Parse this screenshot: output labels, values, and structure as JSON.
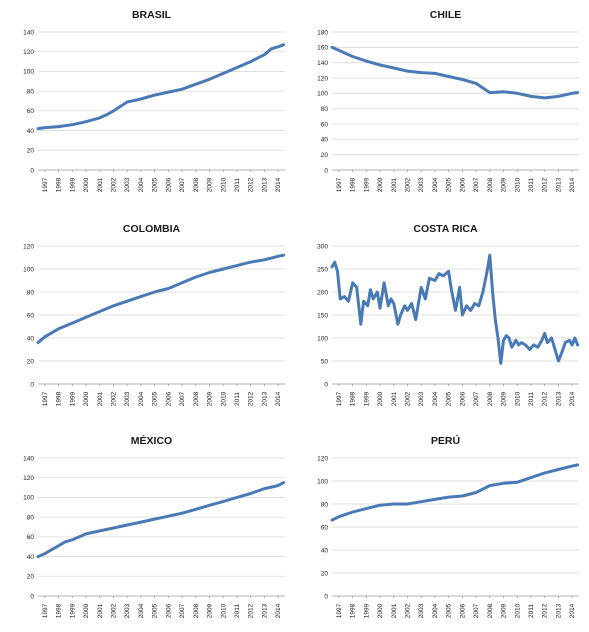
{
  "style": {
    "line_color": "#4a7ab5",
    "grid_color": "#d9d9d9",
    "axis_color": "#9a9a9a",
    "background": "#ffffff"
  },
  "chart_data": [
    {
      "type": "line",
      "title": "BRASIL",
      "grid": true,
      "ylim": [
        0,
        140
      ],
      "yticks": [
        0,
        20,
        40,
        60,
        80,
        100,
        120,
        140
      ],
      "xlim": [
        1996.5,
        2014.5
      ],
      "xticks": [
        "1997",
        "1998",
        "1999",
        "2000",
        "2001",
        "2002",
        "2003",
        "2004",
        "2005",
        "2006",
        "2007",
        "2008",
        "2009",
        "2010",
        "2011",
        "2012",
        "2013",
        "2014"
      ],
      "series": [
        {
          "x": [
            1996.5,
            1997,
            1998,
            1999,
            2000,
            2001,
            2001.5,
            2002,
            2003,
            2004,
            2005,
            2006,
            2007,
            2008,
            2009,
            2010,
            2011,
            2012,
            2013,
            2013.5,
            2014,
            2014.4
          ],
          "y": [
            42,
            43,
            44,
            46,
            49,
            53,
            56,
            60,
            69,
            72,
            76,
            79,
            82,
            87,
            92,
            98,
            104,
            110,
            117,
            123,
            125,
            127
          ]
        }
      ]
    },
    {
      "type": "line",
      "title": "CHILE",
      "grid": true,
      "ylim": [
        0,
        180
      ],
      "yticks": [
        0,
        20,
        40,
        60,
        80,
        100,
        120,
        140,
        160,
        180
      ],
      "xlim": [
        1996.5,
        2014.5
      ],
      "xticks": [
        "1997",
        "1998",
        "1999",
        "2000",
        "2001",
        "2002",
        "2003",
        "2004",
        "2005",
        "2006",
        "2007",
        "2008",
        "2009",
        "2010",
        "2011",
        "2012",
        "2013",
        "2014"
      ],
      "series": [
        {
          "x": [
            1996.5,
            1997,
            1998,
            1999,
            2000,
            2001,
            2002,
            2003,
            2004,
            2005,
            2006,
            2007,
            2007.5,
            2008,
            2009,
            2010,
            2011,
            2012,
            2013,
            2014,
            2014.4
          ],
          "y": [
            160,
            156,
            148,
            142,
            137,
            133,
            129,
            127,
            126,
            122,
            118,
            113,
            107,
            101,
            102,
            100,
            96,
            94,
            96,
            100,
            101
          ]
        }
      ]
    },
    {
      "type": "line",
      "title": "COLOMBIA",
      "grid": true,
      "ylim": [
        0,
        120
      ],
      "yticks": [
        0,
        20,
        40,
        60,
        80,
        100,
        120
      ],
      "xlim": [
        1996.5,
        2014.5
      ],
      "xticks": [
        "1997",
        "1998",
        "1999",
        "2000",
        "2001",
        "2002",
        "2003",
        "2004",
        "2005",
        "2006",
        "2007",
        "2008",
        "2009",
        "2010",
        "2011",
        "2012",
        "2013",
        "2014"
      ],
      "series": [
        {
          "x": [
            1996.5,
            1997,
            1998,
            1999,
            2000,
            2001,
            2002,
            2003,
            2004,
            2005,
            2006,
            2007,
            2008,
            2009,
            2010,
            2011,
            2012,
            2013,
            2014,
            2014.4
          ],
          "y": [
            36,
            41,
            48,
            53,
            58,
            63,
            68,
            72,
            76,
            80,
            83,
            88,
            93,
            97,
            100,
            103,
            106,
            108,
            111,
            112
          ]
        }
      ]
    },
    {
      "type": "line",
      "title": "COSTA RICA",
      "grid": true,
      "ylim": [
        0,
        300
      ],
      "yticks": [
        0,
        50,
        100,
        150,
        200,
        250,
        300
      ],
      "xlim": [
        1996.5,
        2014.5
      ],
      "xticks": [
        "1997",
        "1998",
        "1999",
        "2000",
        "2001",
        "2002",
        "2003",
        "2004",
        "2005",
        "2006",
        "2007",
        "2008",
        "2009",
        "2010",
        "2011",
        "2012",
        "2013",
        "2014"
      ],
      "series": [
        {
          "x": [
            1996.5,
            1996.7,
            1996.9,
            1997.1,
            1997.4,
            1997.7,
            1998,
            1998.3,
            1998.6,
            1998.8,
            1999.1,
            1999.3,
            1999.5,
            1999.8,
            2000,
            2000.3,
            2000.6,
            2000.8,
            2001,
            2001.3,
            2001.5,
            2001.8,
            2002,
            2002.3,
            2002.6,
            2003,
            2003.3,
            2003.6,
            2004,
            2004.3,
            2004.6,
            2005,
            2005.2,
            2005.5,
            2005.8,
            2006,
            2006.3,
            2006.6,
            2006.9,
            2007.2,
            2007.5,
            2007.8,
            2008,
            2008.2,
            2008.4,
            2008.6,
            2008.8,
            2009,
            2009.2,
            2009.4,
            2009.6,
            2009.9,
            2010.1,
            2010.3,
            2010.6,
            2010.9,
            2011.2,
            2011.5,
            2011.8,
            2012,
            2012.2,
            2012.5,
            2012.8,
            2013,
            2013.2,
            2013.5,
            2013.8,
            2014,
            2014.2,
            2014.4
          ],
          "y": [
            255,
            265,
            245,
            185,
            190,
            180,
            220,
            210,
            130,
            180,
            170,
            205,
            185,
            200,
            165,
            220,
            170,
            185,
            175,
            130,
            150,
            170,
            160,
            175,
            140,
            210,
            185,
            230,
            225,
            240,
            235,
            245,
            205,
            160,
            210,
            150,
            170,
            160,
            175,
            170,
            200,
            245,
            280,
            200,
            140,
            100,
            45,
            95,
            105,
            100,
            80,
            95,
            85,
            90,
            85,
            75,
            85,
            80,
            95,
            110,
            90,
            100,
            70,
            50,
            65,
            90,
            95,
            85,
            100,
            85
          ]
        }
      ]
    },
    {
      "type": "line",
      "title": "MÉXICO",
      "grid": true,
      "ylim": [
        0,
        140
      ],
      "yticks": [
        0,
        20,
        40,
        60,
        80,
        100,
        120,
        140
      ],
      "xlim": [
        1996.5,
        2014.5
      ],
      "xticks": [
        "1997",
        "1998",
        "1999",
        "2000",
        "2001",
        "2002",
        "2003",
        "2004",
        "2005",
        "2006",
        "2007",
        "2008",
        "2009",
        "2010",
        "2011",
        "2012",
        "2013",
        "2014"
      ],
      "series": [
        {
          "x": [
            1996.5,
            1997,
            1998,
            1998.5,
            1999,
            2000,
            2001,
            2002,
            2003,
            2004,
            2005,
            2006,
            2007,
            2008,
            2009,
            2010,
            2011,
            2012,
            2013,
            2014,
            2014.4
          ],
          "y": [
            40,
            43,
            51,
            55,
            57,
            63,
            66,
            69,
            72,
            75,
            78,
            81,
            84,
            88,
            92,
            96,
            100,
            104,
            109,
            112,
            115
          ]
        }
      ]
    },
    {
      "type": "line",
      "title": "PERÚ",
      "grid": true,
      "ylim": [
        0,
        120
      ],
      "yticks": [
        0,
        20,
        40,
        60,
        80,
        100,
        120
      ],
      "xlim": [
        1996.5,
        2014.5
      ],
      "xticks": [
        "1997",
        "1998",
        "1999",
        "2000",
        "2001",
        "2002",
        "2003",
        "2004",
        "2005",
        "2006",
        "2007",
        "2008",
        "2009",
        "2010",
        "2011",
        "2012",
        "2013",
        "2014"
      ],
      "series": [
        {
          "x": [
            1996.5,
            1997,
            1998,
            1999,
            2000,
            2001,
            2002,
            2003,
            2004,
            2005,
            2006,
            2007,
            2008,
            2009,
            2010,
            2011,
            2012,
            2013,
            2014,
            2014.4
          ],
          "y": [
            66,
            69,
            73,
            76,
            79,
            80,
            80,
            82,
            84,
            86,
            87,
            90,
            96,
            98,
            99,
            103,
            107,
            110,
            113,
            114
          ]
        }
      ]
    }
  ]
}
